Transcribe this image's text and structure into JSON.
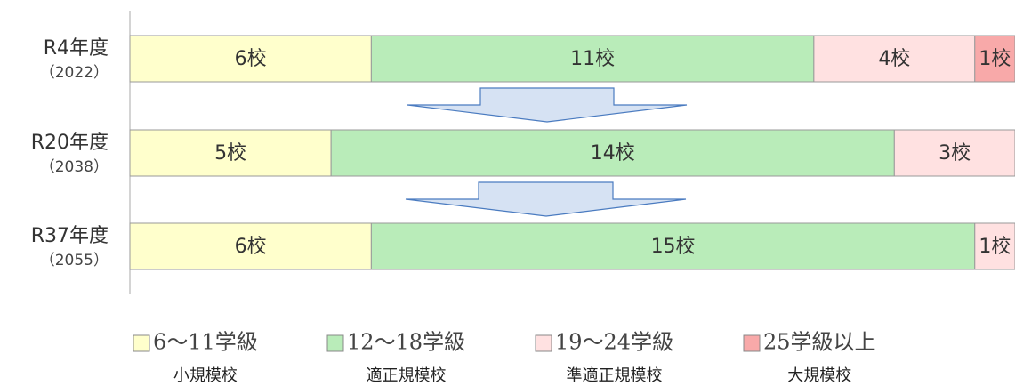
{
  "chart_data": {
    "type": "stacked-barh",
    "categories": [
      "R4年度",
      "R20年度",
      "R37年度"
    ],
    "category_years": [
      "（2022）",
      "（2038）",
      "（2055）"
    ],
    "xlim": [
      0,
      22
    ],
    "series": [
      {
        "name": "6～11学級",
        "description": "小規模校",
        "color": "#ffffcc",
        "values": [
          6,
          5,
          6
        ],
        "value_labels": [
          "6校",
          "5校",
          "6校"
        ]
      },
      {
        "name": "12～18学級",
        "description": "適正規模校",
        "color": "#b9ecb9",
        "values": [
          11,
          14,
          15
        ],
        "value_labels": [
          "11校",
          "14校",
          "15校"
        ]
      },
      {
        "name": "19～24学級",
        "description": "準適正規模校",
        "color": "#ffe1e1",
        "values": [
          4,
          3,
          1
        ],
        "value_labels": [
          "4校",
          "3校",
          "1校"
        ]
      },
      {
        "name": "25学級以上",
        "description": "大規模校",
        "color": "#f8a9a9",
        "values": [
          1,
          0,
          0
        ],
        "value_labels": [
          "1校",
          null,
          null
        ]
      }
    ]
  }
}
